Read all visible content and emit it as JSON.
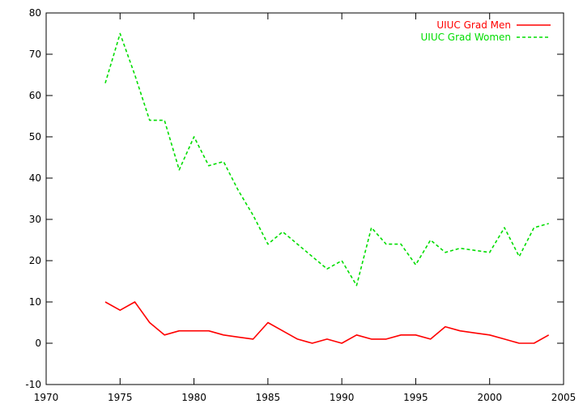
{
  "chart_data": {
    "type": "line",
    "title": "",
    "xlabel": "",
    "ylabel": "",
    "xlim": [
      1970,
      2005
    ],
    "ylim": [
      -10,
      80
    ],
    "xticks": [
      1970,
      1975,
      1980,
      1985,
      1990,
      1995,
      2000,
      2005
    ],
    "yticks": [
      -10,
      0,
      10,
      20,
      30,
      40,
      50,
      60,
      70,
      80
    ],
    "grid": false,
    "legend_position": "top-right",
    "x": [
      1974,
      1975,
      1976,
      1977,
      1978,
      1979,
      1980,
      1981,
      1982,
      1983,
      1984,
      1985,
      1986,
      1987,
      1988,
      1989,
      1990,
      1991,
      1992,
      1993,
      1994,
      1995,
      1996,
      1997,
      1998,
      1999,
      2000,
      2001,
      2002,
      2003,
      2004
    ],
    "series": [
      {
        "name": "UIUC Grad Men",
        "color": "#ff0000",
        "dash": "solid",
        "values": [
          10,
          8,
          10,
          5,
          2,
          3,
          3,
          3,
          2,
          1.5,
          1,
          5,
          3,
          1,
          0,
          1,
          0,
          2,
          1,
          1,
          2,
          2,
          1,
          4,
          3,
          2.5,
          2,
          1,
          0,
          0,
          2
        ]
      },
      {
        "name": "UIUC Grad Women",
        "color": "#00dd00",
        "dash": "dashed",
        "values": [
          63,
          75,
          65,
          54,
          54,
          42,
          50,
          43,
          44,
          37,
          31,
          24,
          27,
          24,
          21,
          18,
          20,
          14,
          28,
          24,
          24,
          19,
          25,
          22,
          23,
          22.5,
          22,
          28,
          21,
          28,
          29
        ]
      }
    ]
  }
}
